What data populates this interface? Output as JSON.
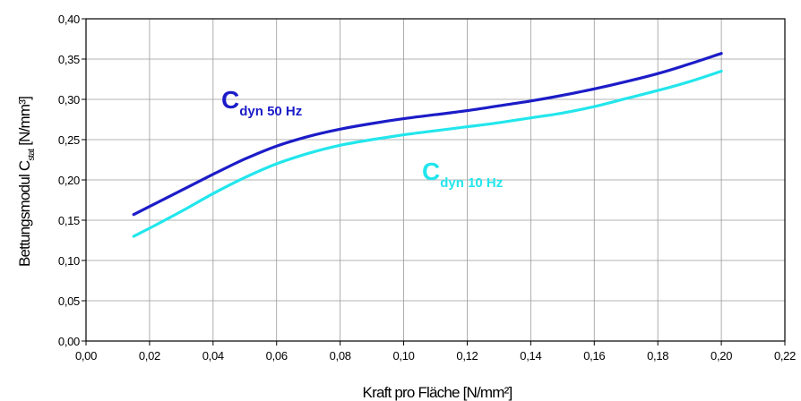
{
  "chart_data": {
    "type": "line",
    "xlabel": "Kraft pro Fläche [N/mm²]",
    "ylabel": {
      "main": "Bettungsmodul  C",
      "subscript": "stat",
      "unit": " [N/mm³]"
    },
    "xlim": [
      0,
      0.22
    ],
    "ylim": [
      0,
      0.4
    ],
    "x_ticks": [
      "0,00",
      "0,02",
      "0,04",
      "0,06",
      "0,08",
      "0,10",
      "0,12",
      "0,14",
      "0,16",
      "0,18",
      "0,20",
      "0,22"
    ],
    "y_ticks": [
      "0,00",
      "0,05",
      "0,10",
      "0,15",
      "0,20",
      "0,25",
      "0,30",
      "0,35",
      "0,40"
    ],
    "grid": true,
    "series": [
      {
        "name": "C dyn 50 Hz",
        "label": {
          "main": "C",
          "sub": "dyn 50 Hz"
        },
        "color": "#1c1cc8",
        "x": [
          0.015,
          0.02,
          0.03,
          0.04,
          0.05,
          0.06,
          0.07,
          0.08,
          0.09,
          0.1,
          0.11,
          0.12,
          0.13,
          0.14,
          0.15,
          0.16,
          0.17,
          0.18,
          0.19,
          0.2
        ],
        "y": [
          0.157,
          0.167,
          0.187,
          0.207,
          0.226,
          0.242,
          0.254,
          0.263,
          0.27,
          0.276,
          0.281,
          0.286,
          0.292,
          0.298,
          0.305,
          0.313,
          0.322,
          0.332,
          0.344,
          0.357
        ]
      },
      {
        "name": "C dyn 10 Hz",
        "label": {
          "main": "C",
          "sub": "dyn 10 Hz"
        },
        "color": "#22e6ec",
        "x": [
          0.015,
          0.02,
          0.03,
          0.04,
          0.05,
          0.06,
          0.07,
          0.08,
          0.09,
          0.1,
          0.11,
          0.12,
          0.13,
          0.14,
          0.15,
          0.16,
          0.17,
          0.18,
          0.19,
          0.2
        ],
        "y": [
          0.13,
          0.14,
          0.161,
          0.183,
          0.203,
          0.22,
          0.233,
          0.243,
          0.25,
          0.256,
          0.261,
          0.266,
          0.271,
          0.277,
          0.283,
          0.291,
          0.301,
          0.311,
          0.322,
          0.335
        ]
      }
    ]
  }
}
